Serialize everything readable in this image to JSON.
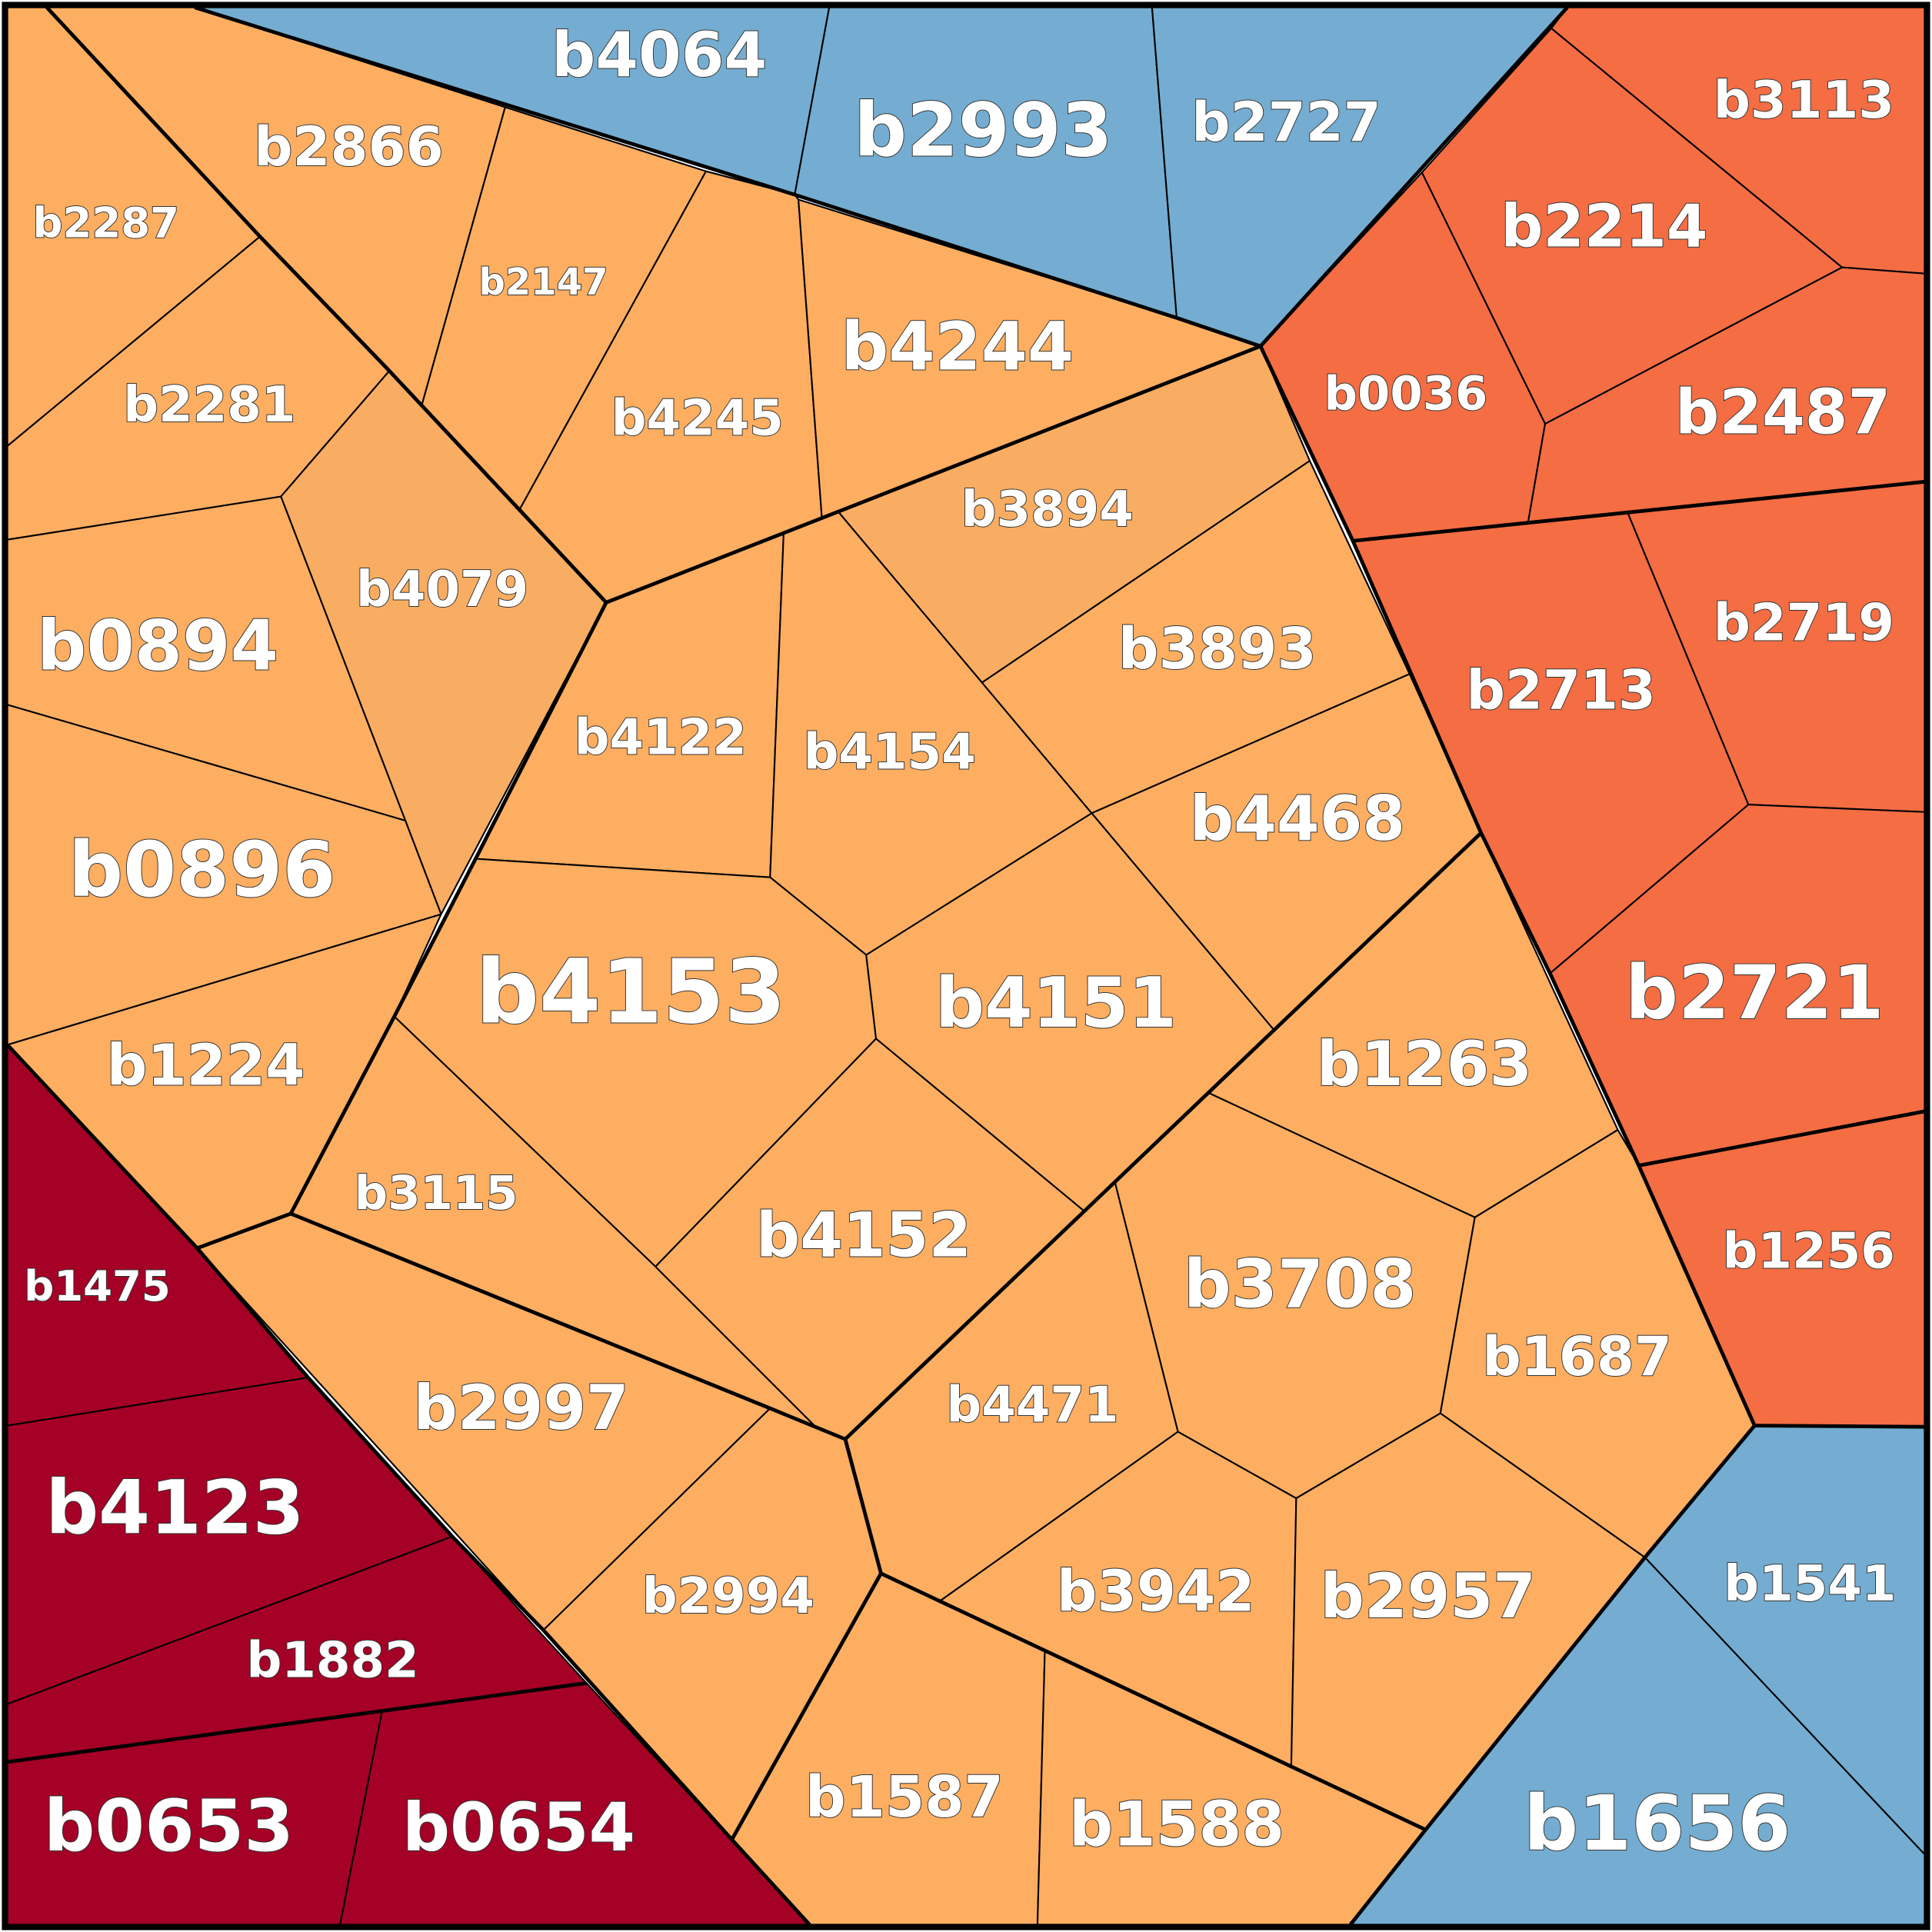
{
  "cells": [
    {
      "label": "b4064",
      "color": "#74add1"
    },
    {
      "label": "b2993",
      "color": "#74add1"
    },
    {
      "label": "b2727",
      "color": "#74add1"
    },
    {
      "label": "b3113",
      "color": "#f46d43"
    },
    {
      "label": "b2214",
      "color": "#f46d43"
    },
    {
      "label": "b0036",
      "color": "#f46d43"
    },
    {
      "label": "b2487",
      "color": "#f46d43"
    },
    {
      "label": "b2713",
      "color": "#f46d43"
    },
    {
      "label": "b2719",
      "color": "#f46d43"
    },
    {
      "label": "b2721",
      "color": "#f46d43"
    },
    {
      "label": "b1256",
      "color": "#f46d43"
    },
    {
      "label": "b1541",
      "color": "#74add1"
    },
    {
      "label": "b1656",
      "color": "#74add1"
    },
    {
      "label": "b1475",
      "color": "#a50026"
    },
    {
      "label": "b4123",
      "color": "#a50026"
    },
    {
      "label": "b1882",
      "color": "#a50026"
    },
    {
      "label": "b0653",
      "color": "#a50026"
    },
    {
      "label": "b0654",
      "color": "#a50026"
    },
    {
      "label": "b2287",
      "color": "#fdae61"
    },
    {
      "label": "b2866",
      "color": "#fdae61"
    },
    {
      "label": "b2147",
      "color": "#fdae61"
    },
    {
      "label": "b4245",
      "color": "#fdae61"
    },
    {
      "label": "b4244",
      "color": "#fdae61"
    },
    {
      "label": "b2281",
      "color": "#fdae61"
    },
    {
      "label": "b4079",
      "color": "#f9ad62"
    },
    {
      "label": "b0894",
      "color": "#fdae61"
    },
    {
      "label": "b0896",
      "color": "#fdae61"
    },
    {
      "label": "b1224",
      "color": "#fdae61"
    },
    {
      "label": "b4122",
      "color": "#fdae61"
    },
    {
      "label": "b3894",
      "color": "#f9ad62"
    },
    {
      "label": "b4154",
      "color": "#fdae61"
    },
    {
      "label": "b3893",
      "color": "#fdae61"
    },
    {
      "label": "b4468",
      "color": "#fdae61"
    },
    {
      "label": "b4153",
      "color": "#fdae61"
    },
    {
      "label": "b4151",
      "color": "#fdae61"
    },
    {
      "label": "b3115",
      "color": "#fdae61"
    },
    {
      "label": "b4152",
      "color": "#fdae61"
    },
    {
      "label": "b1263",
      "color": "#fdae61"
    },
    {
      "label": "b3708",
      "color": "#fdae61"
    },
    {
      "label": "b4471",
      "color": "#fdae61"
    },
    {
      "label": "b1687",
      "color": "#fdae61"
    },
    {
      "label": "b2997",
      "color": "#fdae61"
    },
    {
      "label": "b2994",
      "color": "#fdae61"
    },
    {
      "label": "b1587",
      "color": "#fdae61"
    },
    {
      "label": "b3942",
      "color": "#fdae61"
    },
    {
      "label": "b1588",
      "color": "#fdae61"
    },
    {
      "label": "b2957",
      "color": "#fdae61"
    }
  ]
}
